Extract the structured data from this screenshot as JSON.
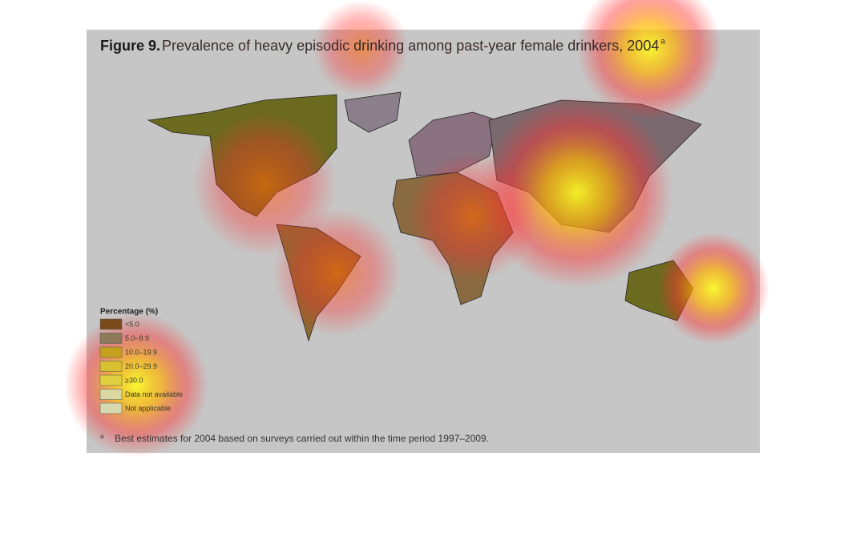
{
  "figure": {
    "label": "Figure 9.",
    "title": "Prevalence of heavy episodic drinking among past-year female drinkers, 2004",
    "title_note": "a"
  },
  "legend": {
    "title": "Percentage (%)",
    "items": [
      {
        "label": "<5.0",
        "color": "#7a4a1a"
      },
      {
        "label": "5.0–9.9",
        "color": "#8c7a58"
      },
      {
        "label": "10.0–19.9",
        "color": "#c8a020"
      },
      {
        "label": "20.0–29.9",
        "color": "#d8c030"
      },
      {
        "label": "≥30.0",
        "color": "#e0d040"
      },
      {
        "label": "Data not available",
        "color": "#d8d8a0"
      },
      {
        "label": "Not applicable",
        "color": "#d8d8b0"
      }
    ]
  },
  "footnote": {
    "mark": "a",
    "text": "Best estimates for 2004 based on surveys carried out within the time period 1997–2009."
  }
}
